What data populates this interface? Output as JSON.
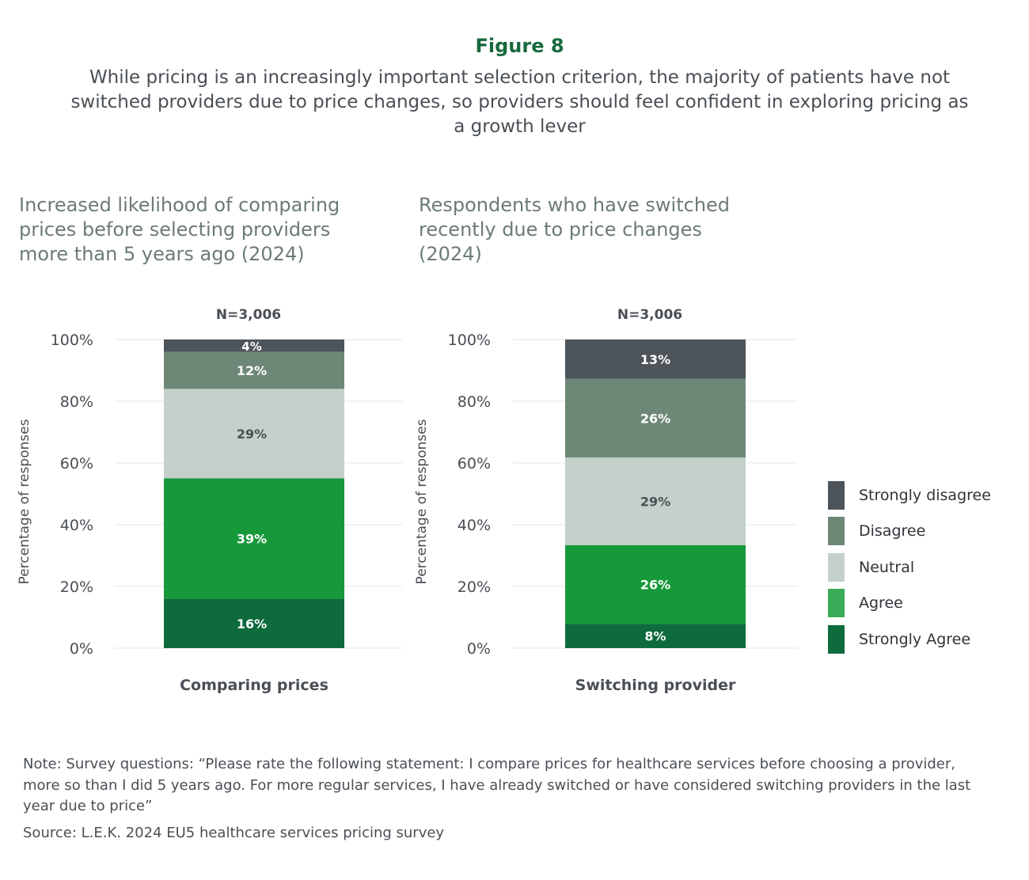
{
  "figure_label": "Figure 8",
  "title": "While pricing is an increasingly important selection criterion, the majority of patients have not switched providers due to price changes, so providers should feel confident in exploring pricing as a growth lever",
  "note": "Note: Survey questions: “Please rate the following statement: I compare prices for healthcare services before choosing a provider, more so than I did 5 years ago. For more regular services, I have already switched or have considered switching providers in the last year due to price”",
  "source": "Source: L.E.K. 2024 EU5 healthcare services pricing survey",
  "legend": [
    {
      "label": "Strongly disagree",
      "color": "#4d545a"
    },
    {
      "label": "Disagree",
      "color": "#6e8878"
    },
    {
      "label": "Neutral",
      "color": "#c5d0cb"
    },
    {
      "label": "Agree",
      "color": "#3aab56"
    },
    {
      "label": "Strongly Agree",
      "color": "#0e6b3c"
    }
  ],
  "chart_data": [
    {
      "type": "bar",
      "stacked": true,
      "title": "Increased likelihood of comparing\nprices before selecting providers\nmore than 5 years ago (2024)",
      "annotation": "N=3,006",
      "ylabel": "Percentage of responses",
      "ylim": [
        0,
        100
      ],
      "yticks": [
        "0%",
        "20%",
        "40%",
        "60%",
        "80%",
        "100%"
      ],
      "categories": [
        "Comparing prices"
      ],
      "series": [
        {
          "name": "Strongly Agree",
          "values": [
            16
          ],
          "label": "16%",
          "color": "#0e6b3c"
        },
        {
          "name": "Agree",
          "values": [
            39
          ],
          "label": "39%",
          "color": "#16993a"
        },
        {
          "name": "Neutral",
          "values": [
            29
          ],
          "label": "29%",
          "color": "#c5d0cb"
        },
        {
          "name": "Disagree",
          "values": [
            12
          ],
          "label": "12%",
          "color": "#6e8878"
        },
        {
          "name": "Strongly disagree",
          "values": [
            4
          ],
          "label": "4%",
          "color": "#4d545a"
        }
      ]
    },
    {
      "type": "bar",
      "stacked": true,
      "title": "Respondents who have switched\nrecently due to price changes\n (2024)",
      "annotation": "N=3,006",
      "ylabel": "Percentage of responses",
      "ylim": [
        0,
        100
      ],
      "yticks": [
        "0%",
        "20%",
        "40%",
        "60%",
        "80%",
        "100%"
      ],
      "categories": [
        "Switching provider"
      ],
      "series": [
        {
          "name": "Strongly Agree",
          "values": [
            8
          ],
          "label": "8%",
          "color": "#0e6b3c"
        },
        {
          "name": "Agree",
          "values": [
            26
          ],
          "label": "26%",
          "color": "#16993a"
        },
        {
          "name": "Neutral",
          "values": [
            29
          ],
          "label": "29%",
          "color": "#c5d0cb"
        },
        {
          "name": "Disagree",
          "values": [
            26
          ],
          "label": "26%",
          "color": "#6e8878"
        },
        {
          "name": "Strongly disagree",
          "values": [
            13
          ],
          "label": "13%",
          "color": "#4d545a"
        }
      ]
    }
  ]
}
